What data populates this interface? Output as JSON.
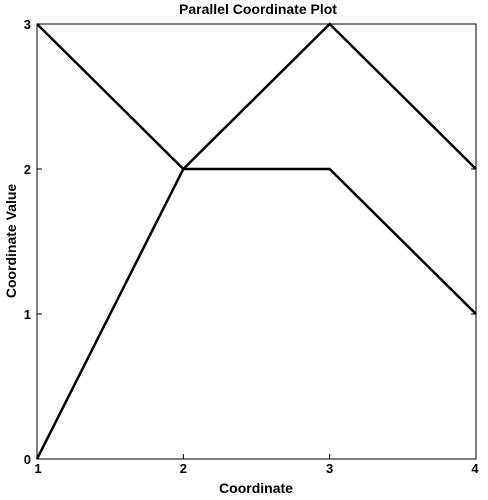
{
  "chart_data": {
    "type": "line",
    "title": "Parallel Coordinate Plot",
    "xlabel": "Coordinate",
    "ylabel": "Coordinate Value",
    "x": [
      1,
      2,
      3,
      4
    ],
    "xticks": [
      "1",
      "2",
      "3",
      "4"
    ],
    "yticks": [
      "0",
      "1",
      "2",
      "3"
    ],
    "xlim": [
      1,
      4
    ],
    "ylim": [
      0,
      3
    ],
    "grid": false,
    "series": [
      {
        "values": [
          3,
          2,
          3,
          2
        ]
      },
      {
        "values": [
          0,
          2,
          2,
          1
        ]
      }
    ],
    "line_color": "#000000"
  }
}
